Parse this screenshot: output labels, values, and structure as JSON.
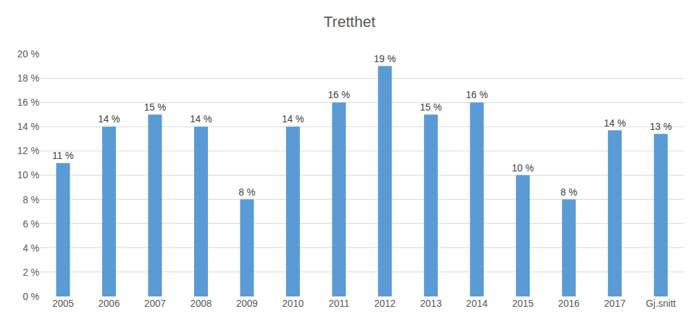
{
  "chart_data": {
    "type": "bar",
    "title": "Tretthet",
    "categories": [
      "2005",
      "2006",
      "2007",
      "2008",
      "2009",
      "2010",
      "2011",
      "2012",
      "2013",
      "2014",
      "2015",
      "2016",
      "2017",
      "Gj.snitt"
    ],
    "values": [
      11,
      14,
      15,
      14,
      8,
      14,
      16,
      19,
      15,
      16,
      10,
      8,
      13.7,
      13.4
    ],
    "value_labels": [
      "11 %",
      "14 %",
      "15 %",
      "14 %",
      "8 %",
      "14 %",
      "16 %",
      "19 %",
      "15 %",
      "16 %",
      "10 %",
      "8 %",
      "14 %",
      "13 %"
    ],
    "color": "#5b9bd5",
    "ylim": [
      0,
      20
    ],
    "yticks": [
      {
        "value": 0,
        "label": "0 %"
      },
      {
        "value": 2,
        "label": "2 %"
      },
      {
        "value": 4,
        "label": "4 %"
      },
      {
        "value": 6,
        "label": "6 %"
      },
      {
        "value": 8,
        "label": "8 %"
      },
      {
        "value": 10,
        "label": "10 %"
      },
      {
        "value": 12,
        "label": "12 %"
      },
      {
        "value": 14,
        "label": "14 %"
      },
      {
        "value": 16,
        "label": "16 %"
      },
      {
        "value": 18,
        "label": "18 %"
      },
      {
        "value": 20,
        "label": "20 %"
      }
    ],
    "grid": true,
    "data_labels": true
  }
}
